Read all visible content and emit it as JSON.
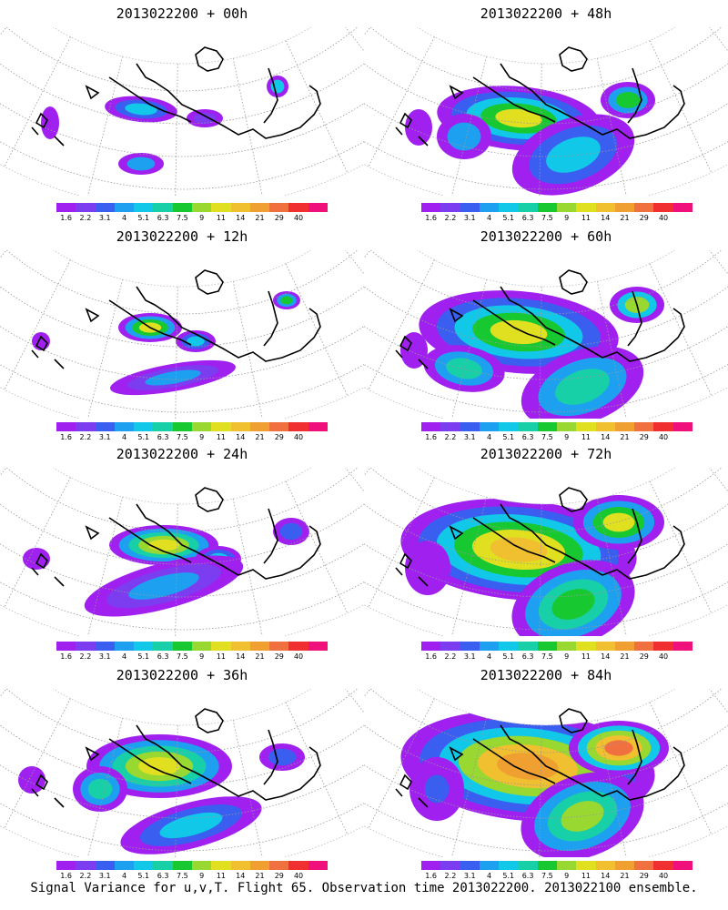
{
  "caption": "Signal Variance for u,v,T. Flight 65. Observation time 2013022200. 2013022100 ensemble.",
  "colorbar": {
    "ticks": [
      "1.6",
      "2.2",
      "3.1",
      "4",
      "5.1",
      "6.3",
      "7.5",
      "9",
      "11",
      "14",
      "21",
      "29",
      "40"
    ],
    "colors": [
      "#a020f0",
      "#7c3cf0",
      "#3a5ef0",
      "#1ea0f0",
      "#12c8e8",
      "#18d0a8",
      "#18c830",
      "#98d830",
      "#e0e020",
      "#f0c030",
      "#f0a030",
      "#f07040",
      "#f03030",
      "#f0107c"
    ]
  },
  "panels": [
    {
      "title": "2013022200 + 00h"
    },
    {
      "title": "2013022200 + 48h"
    },
    {
      "title": "2013022200 + 12h"
    },
    {
      "title": "2013022200 + 60h"
    },
    {
      "title": "2013022200 + 24h"
    },
    {
      "title": "2013022200 + 72h"
    },
    {
      "title": "2013022200 + 36h"
    },
    {
      "title": "2013022200 + 84h"
    }
  ]
}
